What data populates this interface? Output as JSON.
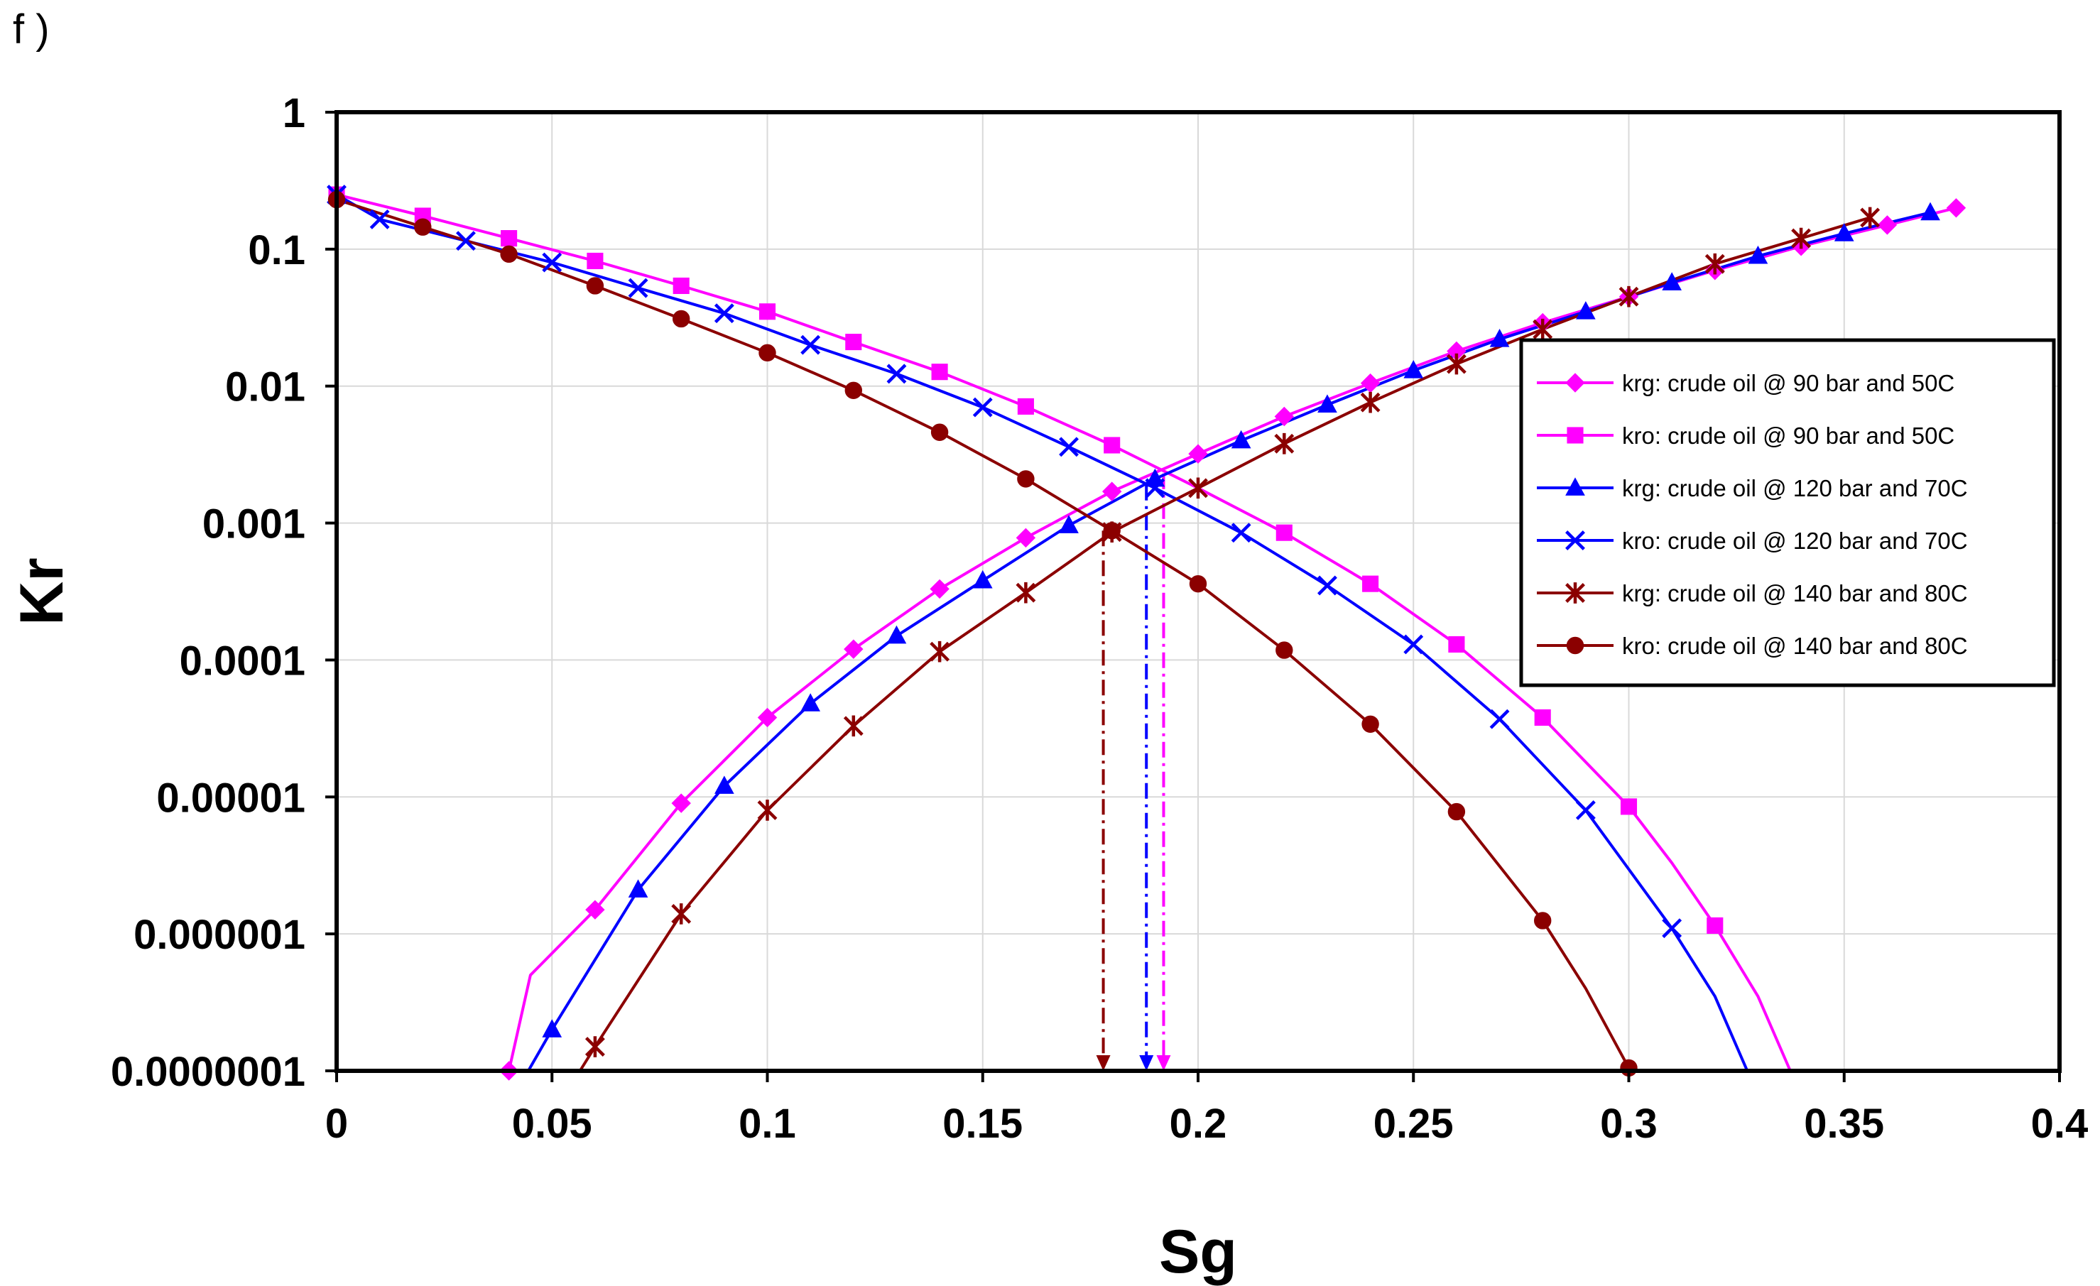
{
  "panel_label": "f )",
  "chart_data": {
    "type": "line",
    "title": "",
    "xlabel": "Sg",
    "ylabel": "Kr",
    "xlim": [
      0,
      0.4
    ],
    "ylim": [
      1e-07,
      1
    ],
    "yscale": "log",
    "grid": true,
    "legend_position": "right-middle",
    "x_ticks": [
      0,
      0.05,
      0.1,
      0.15,
      0.2,
      0.25,
      0.3,
      0.35,
      0.4
    ],
    "x_tick_labels": [
      "0",
      "0.05",
      "0.1",
      "0.15",
      "0.2",
      "0.25",
      "0.3",
      "0.35",
      "0.4"
    ],
    "y_ticks": [
      1,
      0.1,
      0.01,
      0.001,
      0.0001,
      1e-05,
      1e-06,
      1e-07
    ],
    "y_tick_labels": [
      "1",
      "0.1",
      "0.01",
      "0.001",
      "0.0001",
      "0.00001",
      "0.000001",
      "0.0000001"
    ],
    "series": [
      {
        "name": "krg: crude oil  @ 90 bar  and 50C",
        "color": "#ff00ff",
        "marker": "diamond",
        "line_points": [
          [
            0.04,
            1e-07
          ],
          [
            0.045,
            5e-07
          ],
          [
            0.06,
            1.5e-06
          ],
          [
            0.08,
            9e-06
          ],
          [
            0.1,
            3.8e-05
          ],
          [
            0.12,
            0.00012
          ],
          [
            0.14,
            0.00033
          ],
          [
            0.16,
            0.00078
          ],
          [
            0.18,
            0.0017
          ],
          [
            0.2,
            0.0032
          ],
          [
            0.22,
            0.006
          ],
          [
            0.24,
            0.0105
          ],
          [
            0.26,
            0.018
          ],
          [
            0.28,
            0.029
          ],
          [
            0.3,
            0.045
          ],
          [
            0.32,
            0.07
          ],
          [
            0.34,
            0.105
          ],
          [
            0.36,
            0.15
          ],
          [
            0.376,
            0.2
          ]
        ],
        "marker_points": [
          [
            0.04,
            1e-07
          ],
          [
            0.06,
            1.5e-06
          ],
          [
            0.08,
            9e-06
          ],
          [
            0.1,
            3.8e-05
          ],
          [
            0.12,
            0.00012
          ],
          [
            0.14,
            0.00033
          ],
          [
            0.16,
            0.00078
          ],
          [
            0.18,
            0.0017
          ],
          [
            0.2,
            0.0032
          ],
          [
            0.22,
            0.006
          ],
          [
            0.24,
            0.0105
          ],
          [
            0.26,
            0.018
          ],
          [
            0.28,
            0.029
          ],
          [
            0.3,
            0.045
          ],
          [
            0.32,
            0.07
          ],
          [
            0.34,
            0.105
          ],
          [
            0.36,
            0.15
          ],
          [
            0.376,
            0.2
          ]
        ]
      },
      {
        "name": "kro: crude  oil  @ 90 bar and  50C",
        "color": "#ff00ff",
        "marker": "square",
        "line_points": [
          [
            0,
            0.25
          ],
          [
            0.02,
            0.175
          ],
          [
            0.04,
            0.12
          ],
          [
            0.06,
            0.082
          ],
          [
            0.08,
            0.054
          ],
          [
            0.1,
            0.035
          ],
          [
            0.12,
            0.021
          ],
          [
            0.14,
            0.0127
          ],
          [
            0.16,
            0.0071
          ],
          [
            0.18,
            0.0037
          ],
          [
            0.2,
            0.0018
          ],
          [
            0.22,
            0.00085
          ],
          [
            0.24,
            0.00036
          ],
          [
            0.26,
            0.00013
          ],
          [
            0.28,
            3.8e-05
          ],
          [
            0.3,
            8.5e-06
          ],
          [
            0.31,
            3.3e-06
          ],
          [
            0.32,
            1.15e-06
          ],
          [
            0.33,
            3.5e-07
          ],
          [
            0.3375,
            1e-07
          ]
        ],
        "marker_points": [
          [
            0,
            0.25
          ],
          [
            0.02,
            0.175
          ],
          [
            0.04,
            0.12
          ],
          [
            0.06,
            0.082
          ],
          [
            0.08,
            0.054
          ],
          [
            0.1,
            0.035
          ],
          [
            0.12,
            0.021
          ],
          [
            0.14,
            0.0127
          ],
          [
            0.16,
            0.0071
          ],
          [
            0.18,
            0.0037
          ],
          [
            0.22,
            0.00085
          ],
          [
            0.24,
            0.00036
          ],
          [
            0.26,
            0.00013
          ],
          [
            0.28,
            3.8e-05
          ],
          [
            0.3,
            8.5e-06
          ],
          [
            0.32,
            1.15e-06
          ]
        ]
      },
      {
        "name": "krg: crude  oil @  120 bar and 70C",
        "color": "#0000ff",
        "marker": "triangle",
        "line_points": [
          [
            0.0445,
            1e-07
          ],
          [
            0.05,
            2e-07
          ],
          [
            0.07,
            2.1e-06
          ],
          [
            0.09,
            1.2e-05
          ],
          [
            0.11,
            4.8e-05
          ],
          [
            0.13,
            0.00015
          ],
          [
            0.15,
            0.00038
          ],
          [
            0.17,
            0.00096
          ],
          [
            0.19,
            0.0021
          ],
          [
            0.21,
            0.004
          ],
          [
            0.23,
            0.0073
          ],
          [
            0.25,
            0.013
          ],
          [
            0.27,
            0.022
          ],
          [
            0.29,
            0.035
          ],
          [
            0.31,
            0.057
          ],
          [
            0.33,
            0.089
          ],
          [
            0.35,
            0.13
          ],
          [
            0.37,
            0.185
          ]
        ],
        "marker_points": [
          [
            0.05,
            2e-07
          ],
          [
            0.07,
            2.1e-06
          ],
          [
            0.09,
            1.2e-05
          ],
          [
            0.11,
            4.8e-05
          ],
          [
            0.13,
            0.00015
          ],
          [
            0.15,
            0.00038
          ],
          [
            0.17,
            0.00096
          ],
          [
            0.19,
            0.0021
          ],
          [
            0.21,
            0.004
          ],
          [
            0.23,
            0.0073
          ],
          [
            0.25,
            0.013
          ],
          [
            0.27,
            0.022
          ],
          [
            0.29,
            0.035
          ],
          [
            0.31,
            0.057
          ],
          [
            0.33,
            0.089
          ],
          [
            0.35,
            0.13
          ],
          [
            0.37,
            0.185
          ]
        ]
      },
      {
        "name": "kro: crude  oil  @ 120 bar and 70C",
        "color": "#0000ff",
        "marker": "x",
        "line_points": [
          [
            0,
            0.25
          ],
          [
            0.01,
            0.165
          ],
          [
            0.03,
            0.115
          ],
          [
            0.05,
            0.08
          ],
          [
            0.07,
            0.052
          ],
          [
            0.09,
            0.034
          ],
          [
            0.11,
            0.02
          ],
          [
            0.13,
            0.0123
          ],
          [
            0.15,
            0.007
          ],
          [
            0.17,
            0.0036
          ],
          [
            0.19,
            0.0018
          ],
          [
            0.21,
            0.00085
          ],
          [
            0.23,
            0.00035
          ],
          [
            0.25,
            0.00013
          ],
          [
            0.27,
            3.7e-05
          ],
          [
            0.29,
            8e-06
          ],
          [
            0.31,
            1.1e-06
          ],
          [
            0.32,
            3.5e-07
          ],
          [
            0.3275,
            1e-07
          ]
        ],
        "marker_points": [
          [
            0,
            0.25
          ],
          [
            0.01,
            0.165
          ],
          [
            0.03,
            0.115
          ],
          [
            0.05,
            0.08
          ],
          [
            0.07,
            0.052
          ],
          [
            0.09,
            0.034
          ],
          [
            0.11,
            0.02
          ],
          [
            0.13,
            0.0123
          ],
          [
            0.15,
            0.007
          ],
          [
            0.17,
            0.0036
          ],
          [
            0.19,
            0.0018
          ],
          [
            0.21,
            0.00085
          ],
          [
            0.23,
            0.00035
          ],
          [
            0.25,
            0.00013
          ],
          [
            0.27,
            3.7e-05
          ],
          [
            0.29,
            8e-06
          ],
          [
            0.31,
            1.1e-06
          ]
        ]
      },
      {
        "name": "krg: crude  oil  @ 140 bar  and 80C",
        "color": "#8b0000",
        "marker": "star",
        "line_points": [
          [
            0.0565,
            1e-07
          ],
          [
            0.06,
            1.5e-07
          ],
          [
            0.08,
            1.4e-06
          ],
          [
            0.1,
            8e-06
          ],
          [
            0.12,
            3.3e-05
          ],
          [
            0.14,
            0.000115
          ],
          [
            0.16,
            0.00031
          ],
          [
            0.18,
            0.00086
          ],
          [
            0.2,
            0.0018
          ],
          [
            0.22,
            0.0038
          ],
          [
            0.24,
            0.0076
          ],
          [
            0.26,
            0.0145
          ],
          [
            0.28,
            0.026
          ],
          [
            0.3,
            0.045
          ],
          [
            0.32,
            0.078
          ],
          [
            0.34,
            0.12
          ],
          [
            0.356,
            0.17
          ]
        ],
        "marker_points": [
          [
            0.06,
            1.5e-07
          ],
          [
            0.08,
            1.4e-06
          ],
          [
            0.1,
            8e-06
          ],
          [
            0.12,
            3.3e-05
          ],
          [
            0.14,
            0.000115
          ],
          [
            0.16,
            0.00031
          ],
          [
            0.18,
            0.00086
          ],
          [
            0.2,
            0.0018
          ],
          [
            0.22,
            0.0038
          ],
          [
            0.24,
            0.0076
          ],
          [
            0.26,
            0.0145
          ],
          [
            0.28,
            0.026
          ],
          [
            0.3,
            0.045
          ],
          [
            0.32,
            0.078
          ],
          [
            0.34,
            0.12
          ],
          [
            0.356,
            0.17
          ]
        ]
      },
      {
        "name": "kro: crude  oil  @ 140 bar and 80C",
        "color": "#8b0000",
        "marker": "circle",
        "line_points": [
          [
            0,
            0.23
          ],
          [
            0.02,
            0.145
          ],
          [
            0.04,
            0.092
          ],
          [
            0.06,
            0.054
          ],
          [
            0.08,
            0.031
          ],
          [
            0.1,
            0.0175
          ],
          [
            0.12,
            0.0093
          ],
          [
            0.14,
            0.0046
          ],
          [
            0.16,
            0.0021
          ],
          [
            0.18,
            0.00088
          ],
          [
            0.2,
            0.00036
          ],
          [
            0.22,
            0.000118
          ],
          [
            0.24,
            3.4e-05
          ],
          [
            0.26,
            7.8e-06
          ],
          [
            0.28,
            1.25e-06
          ],
          [
            0.29,
            4e-07
          ],
          [
            0.3,
            1.05e-07
          ]
        ],
        "marker_points": [
          [
            0,
            0.23
          ],
          [
            0.02,
            0.145
          ],
          [
            0.04,
            0.092
          ],
          [
            0.06,
            0.054
          ],
          [
            0.08,
            0.031
          ],
          [
            0.1,
            0.0175
          ],
          [
            0.12,
            0.0093
          ],
          [
            0.14,
            0.0046
          ],
          [
            0.16,
            0.0021
          ],
          [
            0.18,
            0.00088
          ],
          [
            0.2,
            0.00036
          ],
          [
            0.22,
            0.000118
          ],
          [
            0.24,
            3.4e-05
          ],
          [
            0.26,
            7.8e-06
          ],
          [
            0.28,
            1.25e-06
          ],
          [
            0.3,
            1.05e-07
          ]
        ]
      }
    ],
    "annotations": [
      {
        "type": "dash-dot-arrow",
        "x": 0.178,
        "from_y": 0.00088,
        "to_y": 1e-07,
        "color": "#8b0000"
      },
      {
        "type": "dash-dot-arrow",
        "x": 0.188,
        "from_y": 0.0019,
        "to_y": 1e-07,
        "color": "#0000ff"
      },
      {
        "type": "dash-dot-arrow",
        "x": 0.192,
        "from_y": 0.0023,
        "to_y": 1e-07,
        "color": "#ff00ff"
      }
    ]
  }
}
